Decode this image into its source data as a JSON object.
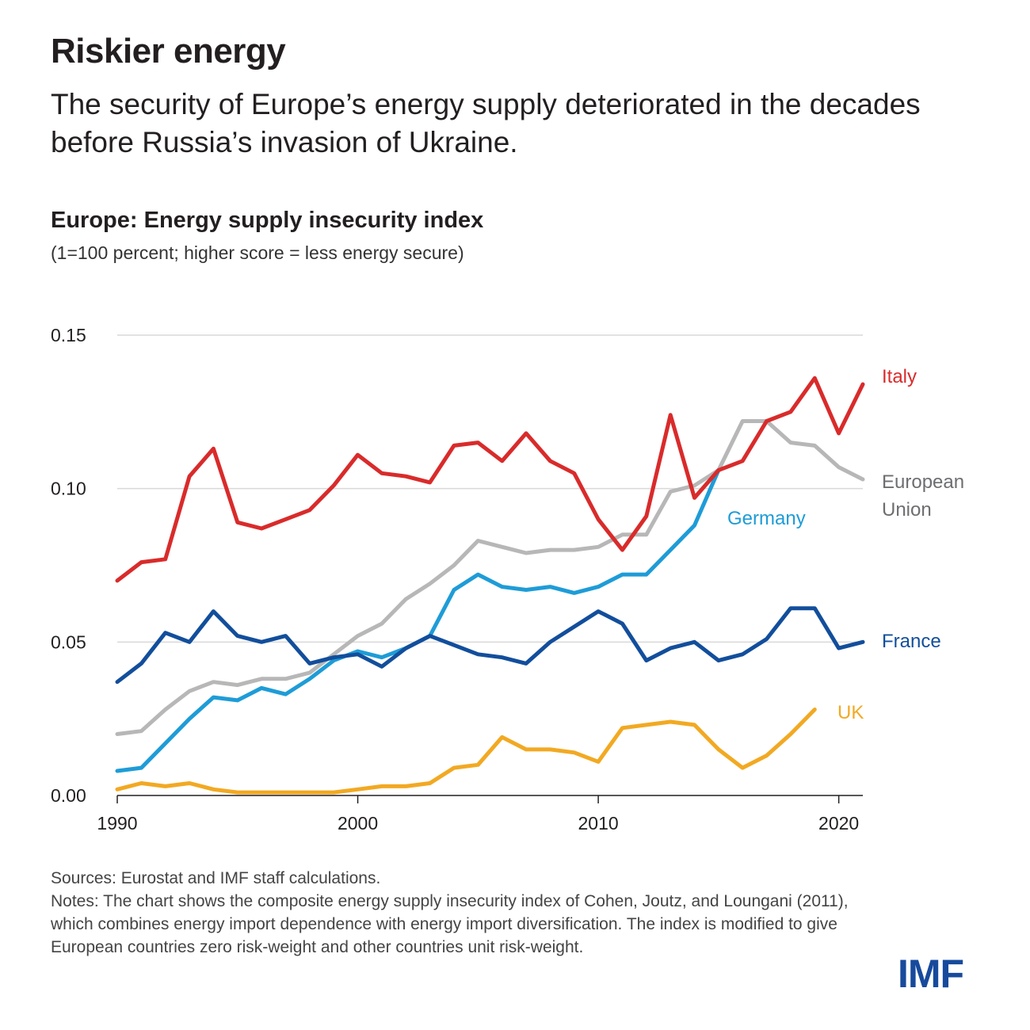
{
  "header": {
    "title": "Riskier energy",
    "subtitle": "The security of Europe’s energy supply deteriorated in the decades before Russia’s invasion of Ukraine."
  },
  "chart_data": {
    "type": "line",
    "title": "Europe: Energy supply insecurity index",
    "subtitle": "(1=100 percent; higher score = less energy secure)",
    "xlabel": "",
    "ylabel": "",
    "xlim": [
      1990,
      2021
    ],
    "ylim": [
      0,
      0.15
    ],
    "xticks": [
      1990,
      2000,
      2010,
      2020
    ],
    "xtick_labels": [
      "1990",
      "2000",
      "2010",
      "2020"
    ],
    "yticks": [
      0,
      0.05,
      0.1,
      0.15
    ],
    "ytick_labels": [
      "0.00",
      "0.05",
      "0.10",
      "0.15"
    ],
    "grid": true,
    "legend": "direct-labels-right",
    "series": [
      {
        "name": "Italy",
        "label": "Italy",
        "color": "#d92b2b",
        "start_year": 1990,
        "values": [
          0.07,
          0.076,
          0.077,
          0.104,
          0.113,
          0.089,
          0.087,
          0.09,
          0.093,
          0.101,
          0.111,
          0.105,
          0.104,
          0.102,
          0.114,
          0.115,
          0.109,
          0.118,
          0.109,
          0.105,
          0.09,
          0.08,
          0.091,
          0.124,
          0.097,
          0.106,
          0.109,
          0.122,
          0.125,
          0.136,
          0.118,
          0.134
        ]
      },
      {
        "name": "European Union",
        "label": "European Union",
        "color": "#b7b7b7",
        "start_year": 1990,
        "values": [
          0.02,
          0.021,
          0.028,
          0.034,
          0.037,
          0.036,
          0.038,
          0.038,
          0.04,
          0.046,
          0.052,
          0.056,
          0.064,
          0.069,
          0.075,
          0.083,
          0.081,
          0.079,
          0.08,
          0.08,
          0.081,
          0.085,
          0.085,
          0.099,
          0.101,
          0.106,
          0.122,
          0.122,
          0.115,
          0.114,
          0.107,
          0.103
        ]
      },
      {
        "name": "Germany",
        "label": "Germany",
        "color": "#1e9cd7",
        "start_year": 1990,
        "values": [
          0.008,
          0.009,
          0.017,
          0.025,
          0.032,
          0.031,
          0.035,
          0.033,
          0.038,
          0.044,
          0.047,
          0.045,
          0.048,
          0.052,
          0.067,
          0.072,
          0.068,
          0.067,
          0.068,
          0.066,
          0.068,
          0.072,
          0.072,
          0.08,
          0.088,
          0.106
        ]
      },
      {
        "name": "France",
        "label": "France",
        "color": "#124e9c",
        "start_year": 1990,
        "values": [
          0.037,
          0.043,
          0.053,
          0.05,
          0.06,
          0.052,
          0.05,
          0.052,
          0.043,
          0.045,
          0.046,
          0.042,
          0.048,
          0.052,
          0.049,
          0.046,
          0.045,
          0.043,
          0.05,
          0.055,
          0.06,
          0.056,
          0.044,
          0.048,
          0.05,
          0.044,
          0.046,
          0.051,
          0.061,
          0.061,
          0.048,
          0.05
        ]
      },
      {
        "name": "UK",
        "label": "UK",
        "color": "#f2a922",
        "start_year": 1990,
        "values": [
          0.002,
          0.004,
          0.003,
          0.004,
          0.002,
          0.001,
          0.001,
          0.001,
          0.001,
          0.001,
          0.002,
          0.003,
          0.003,
          0.004,
          0.009,
          0.01,
          0.019,
          0.015,
          0.015,
          0.014,
          0.011,
          0.022,
          0.023,
          0.024,
          0.023,
          0.015,
          0.009,
          0.013,
          0.02,
          0.028
        ]
      }
    ]
  },
  "footer": {
    "sources": "Sources: Eurostat and IMF staff calculations.",
    "notes": "Notes: The chart shows the composite energy supply insecurity index of Cohen, Joutz, and Loungani (2011), which combines energy import dependence with energy import diversification. The index is modified to give European countries zero risk-weight and other countries unit risk-weight.",
    "logo": "IMF"
  }
}
